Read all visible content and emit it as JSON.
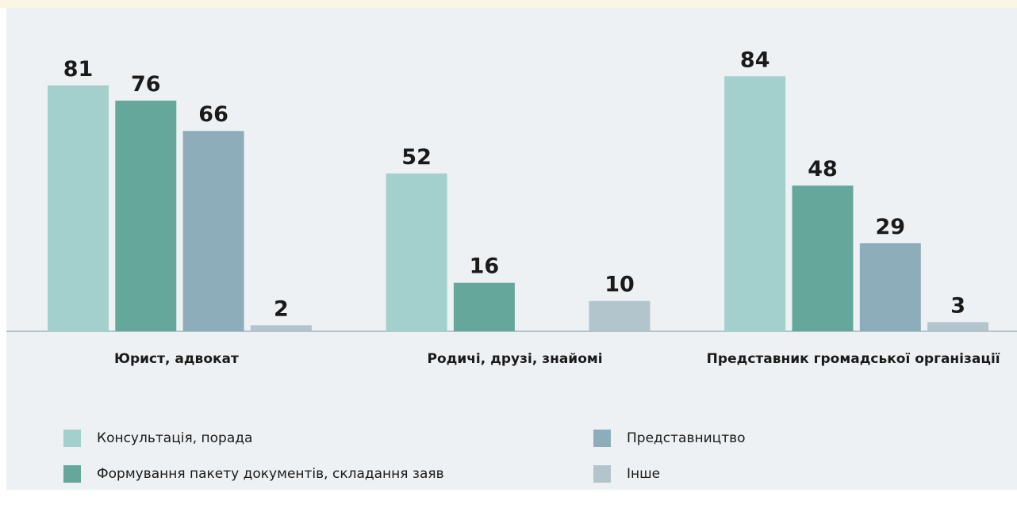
{
  "chart_data": {
    "type": "bar",
    "categories": [
      "Юрист, адвокат",
      "Родичі, друзі, знайомі",
      "Представник громадської організації"
    ],
    "series": [
      {
        "name": "Консультація, порада",
        "color": "#a3cfcc",
        "values": [
          81,
          52,
          84
        ]
      },
      {
        "name": "Формування пакету документів, складання заяв",
        "color": "#66a79c",
        "values": [
          76,
          16,
          48
        ]
      },
      {
        "name": "Представництво",
        "color": "#8eadbb",
        "values": [
          66,
          null,
          29
        ]
      },
      {
        "name": "Інше",
        "color": "#b2c4cc",
        "values": [
          2,
          10,
          3
        ]
      }
    ]
  }
}
